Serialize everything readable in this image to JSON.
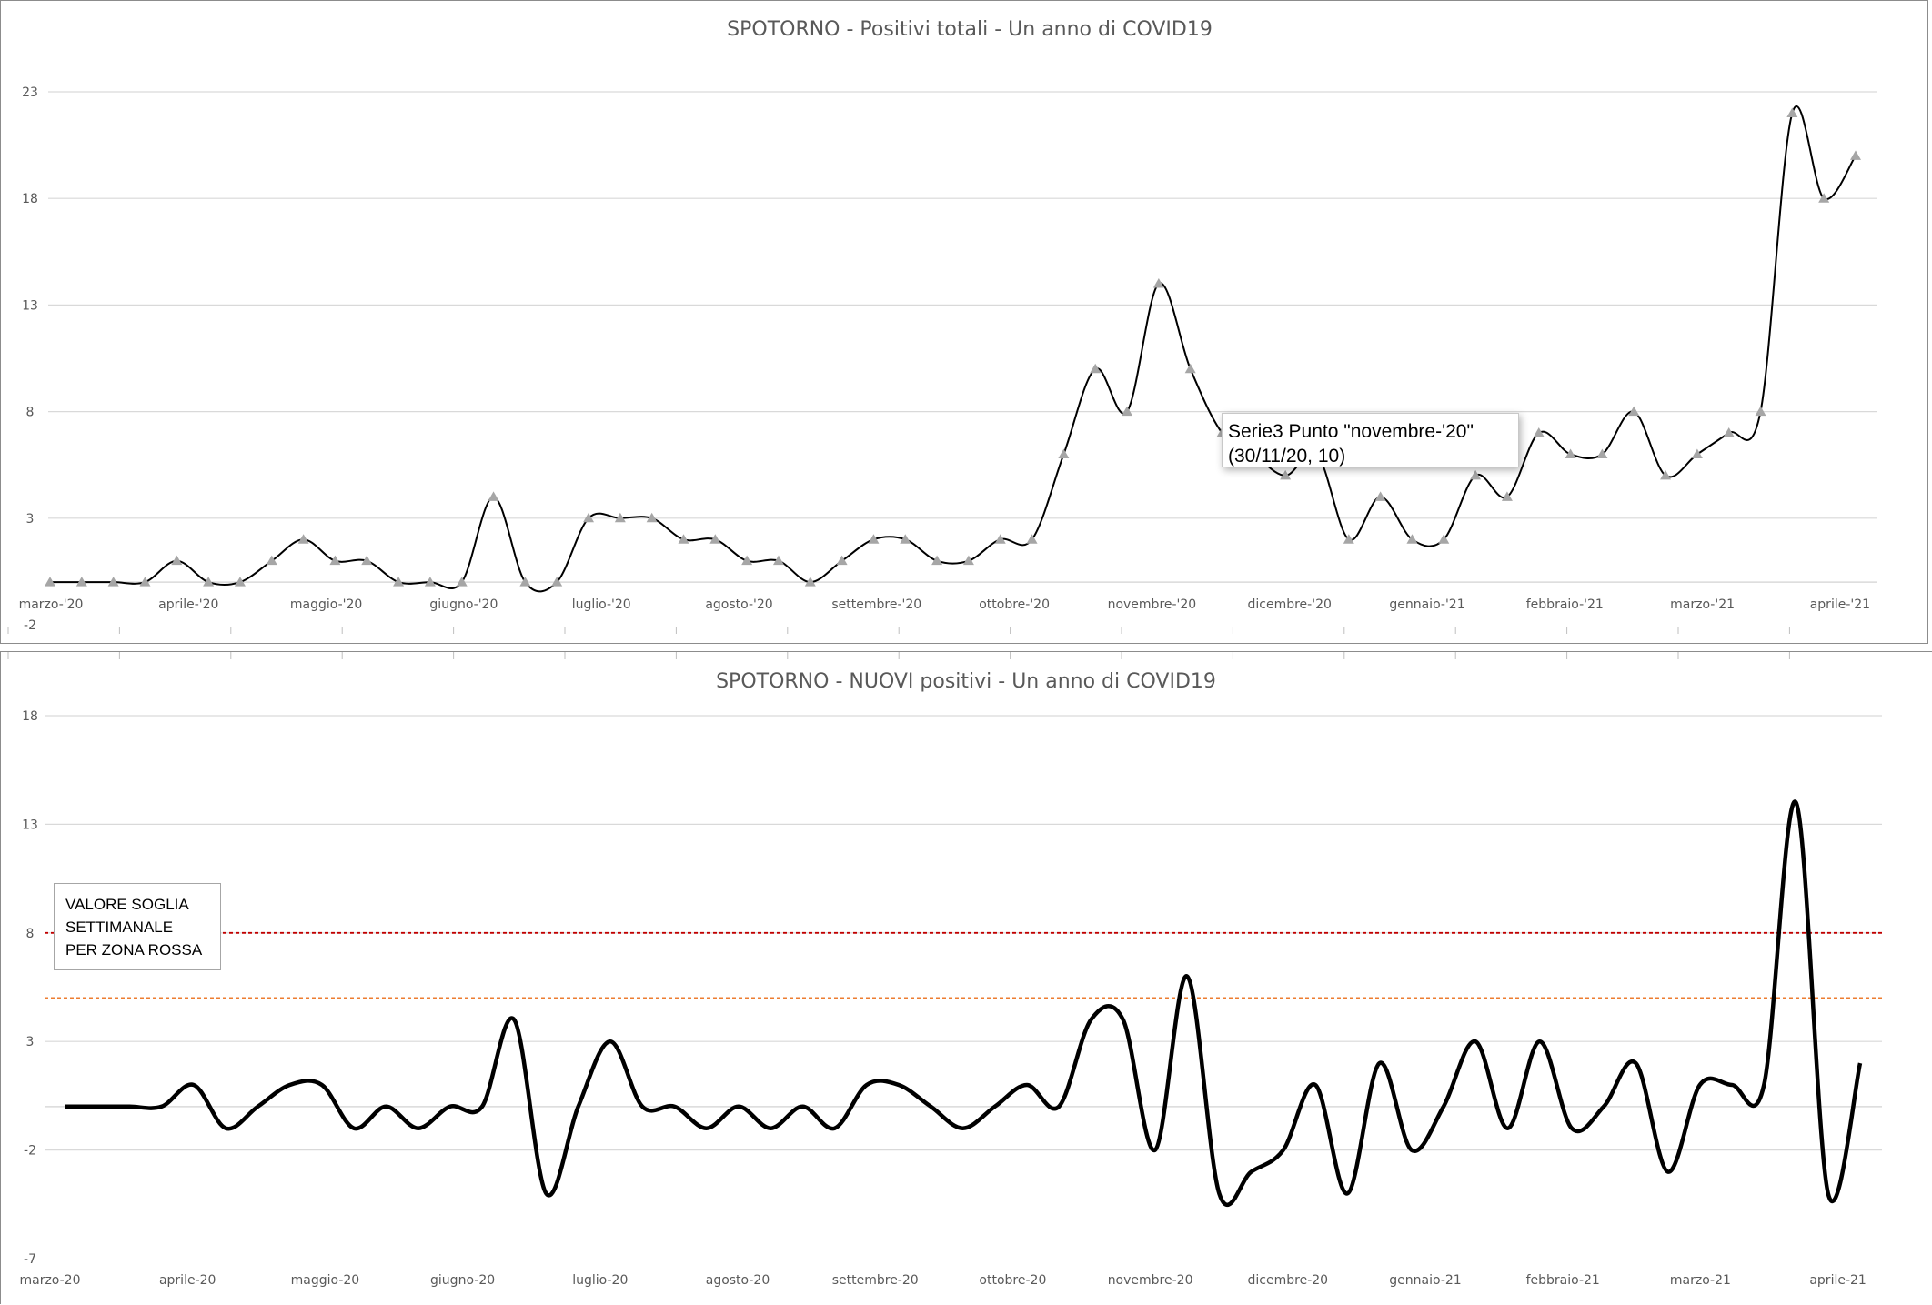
{
  "chart_data": [
    {
      "type": "line",
      "title": "SPOTORNO - Positivi totali - Un anno di COVID19",
      "xlabel": "",
      "ylabel": "",
      "ylim": [
        -2,
        23
      ],
      "yticks": [
        -2,
        3,
        8,
        13,
        18,
        23
      ],
      "xticks": [
        "marzo-'20",
        "aprile-'20",
        "maggio-'20",
        "giugno-'20",
        "luglio-'20",
        "agosto-'20",
        "settembre-'20",
        "ottobre-'20",
        "novembre-'20",
        "dicembre-'20",
        "gennaio-'21",
        "febbraio-'21",
        "marzo-'21",
        "aprile-'21"
      ],
      "grid": true,
      "legend": "none",
      "series": [
        {
          "marker": "triangle",
          "color": "#000000",
          "marker_color": "#a6a6a6",
          "values": [
            0,
            0,
            0,
            0,
            1,
            0,
            0,
            1,
            2,
            1,
            1,
            0,
            0,
            0,
            4,
            0,
            0,
            3,
            3,
            3,
            2,
            2,
            1,
            1,
            0,
            1,
            2,
            2,
            1,
            1,
            2,
            2,
            6,
            10,
            8,
            14,
            10,
            7,
            6,
            5,
            6,
            2,
            4,
            2,
            2,
            5,
            4,
            7,
            6,
            6,
            8,
            5,
            6,
            7,
            8,
            22,
            18,
            20
          ]
        }
      ],
      "tooltip": {
        "line1": "Serie3 Punto \"novembre-'20\"",
        "line2": "(30/11/20, 10)"
      }
    },
    {
      "type": "line",
      "title": "SPOTORNO - NUOVI positivi - Un anno di COVID19",
      "xlabel": "",
      "ylabel": "",
      "ylim": [
        -7,
        18
      ],
      "yticks": [
        -7,
        -2,
        3,
        8,
        13,
        18
      ],
      "xticks": [
        "marzo-20",
        "aprile-20",
        "maggio-20",
        "giugno-20",
        "luglio-20",
        "agosto-20",
        "settembre-20",
        "ottobre-20",
        "novembre-20",
        "dicembre-20",
        "gennaio-21",
        "febbraio-21",
        "marzo-21",
        "aprile-21"
      ],
      "grid": true,
      "legend": "none",
      "series": [
        {
          "color": "#000000",
          "values": [
            0,
            0,
            0,
            0,
            1,
            -1,
            0,
            1,
            1,
            -1,
            0,
            -1,
            0,
            0,
            4,
            -4,
            0,
            3,
            0,
            0,
            -1,
            0,
            -1,
            0,
            -1,
            1,
            1,
            0,
            -1,
            0,
            1,
            0,
            4,
            4,
            -2,
            6,
            -4,
            -3,
            -2,
            1,
            -4,
            2,
            -2,
            0,
            3,
            -1,
            3,
            -1,
            0,
            2,
            -3,
            1,
            1,
            1,
            14,
            -4,
            2
          ]
        }
      ],
      "thresholds": [
        {
          "value": 8,
          "color": "#c00000"
        },
        {
          "value": 5,
          "color": "#ed7d31"
        }
      ],
      "annotation": {
        "line1": "VALORE SOGLIA",
        "line2": "SETTIMANALE",
        "line3": "PER ZONA ROSSA"
      }
    }
  ]
}
